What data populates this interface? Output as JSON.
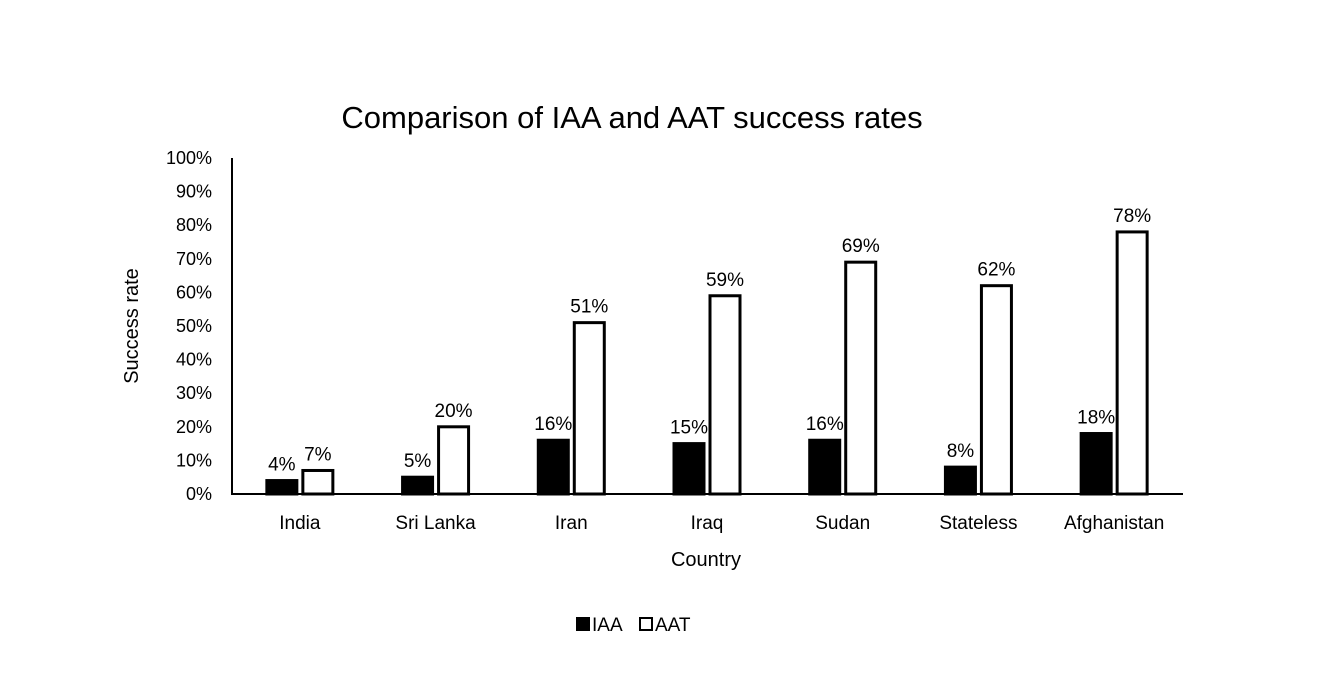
{
  "chart_data": {
    "type": "bar",
    "title": "Comparison of IAA and AAT success rates",
    "xlabel": "Country",
    "ylabel": "Success rate",
    "ylim": [
      0,
      100
    ],
    "yticks": [
      0,
      10,
      20,
      30,
      40,
      50,
      60,
      70,
      80,
      90,
      100
    ],
    "ytick_labels": [
      "0%",
      "10%",
      "20%",
      "30%",
      "40%",
      "50%",
      "60%",
      "70%",
      "80%",
      "90%",
      "100%"
    ],
    "grid": false,
    "legend_position": "bottom",
    "categories": [
      "India",
      "Sri Lanka",
      "Iran",
      "Iraq",
      "Sudan",
      "Stateless",
      "Afghanistan"
    ],
    "series": [
      {
        "name": "IAA",
        "fill": "#000000",
        "stroke": "#000000",
        "values": [
          4,
          5,
          16,
          15,
          16,
          8,
          18
        ],
        "value_labels": [
          "4%",
          "5%",
          "16%",
          "15%",
          "16%",
          "8%",
          "18%"
        ]
      },
      {
        "name": "AAT",
        "fill": "#ffffff",
        "stroke": "#000000",
        "values": [
          7,
          20,
          51,
          59,
          69,
          62,
          78
        ],
        "value_labels": [
          "7%",
          "20%",
          "51%",
          "59%",
          "69%",
          "62%",
          "78%"
        ]
      }
    ]
  }
}
